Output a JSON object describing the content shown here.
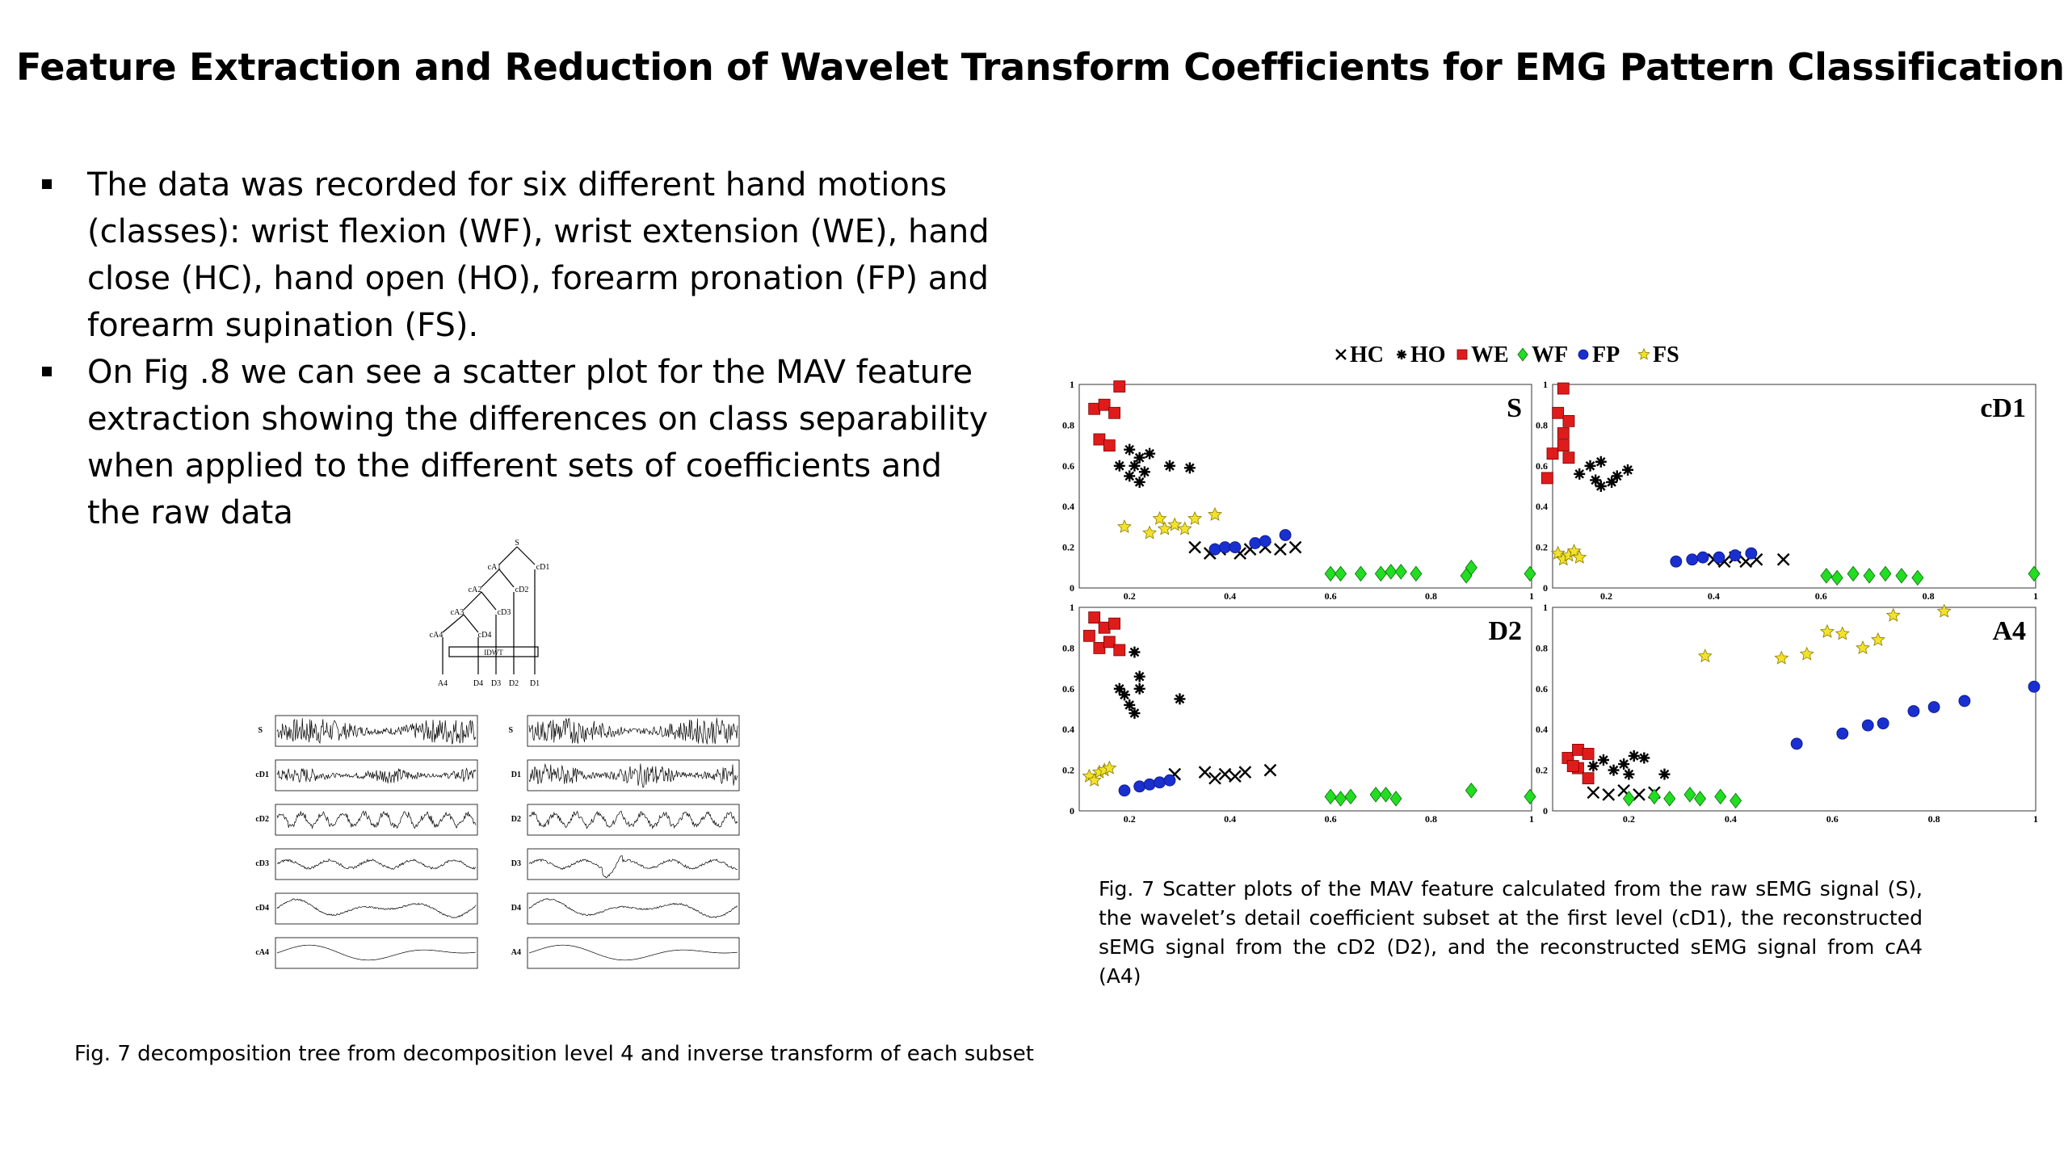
{
  "title": "Feature Extraction and Reduction of Wavelet Transform Coefficients for EMG Pattern Classification",
  "bullets": [
    "The data was recorded for six different hand motions (classes): wrist flexion (WF), wrist extension (WE), hand close (HC), hand open (HO), forearm pronation (FP) and forearm supination (FS).",
    "On Fig .8 we can see a scatter plot for the MAV feature extraction showing the differences on class separability when applied to the different sets of coefficients and the raw data"
  ],
  "caption_left": "Fig. 7 decomposition tree from decomposition level 4 and inverse transform of each subset",
  "caption_right": "Fig. 7 Scatter plots of the MAV feature calculated from the raw sEMG signal (S), the wavelet’s detail coefficient subset at the first level (cD1), the reconstructed sEMG signal from the cD2 (D2), and the reconstructed sEMG signal from cA4 (A4)",
  "tree": {
    "nodes": [
      "S",
      "cA1",
      "cD1",
      "cA2",
      "cD2",
      "cA3",
      "cD3",
      "cA4",
      "cD4"
    ],
    "box_label": "IDWT",
    "outputs": [
      "A4",
      "D4",
      "D3",
      "D2",
      "D1"
    ]
  },
  "signals": {
    "left_labels": [
      "S",
      "cD1",
      "cD2",
      "cD3",
      "cD4",
      "cA4"
    ],
    "right_labels": [
      "S",
      "D1",
      "D2",
      "D3",
      "D4",
      "A4"
    ]
  },
  "chart_data": {
    "type": "scatter",
    "legend": [
      {
        "name": "HC",
        "marker": "x",
        "color": "#000000"
      },
      {
        "name": "HO",
        "marker": "asterisk",
        "color": "#000000"
      },
      {
        "name": "WE",
        "marker": "square",
        "color": "#e01b1b"
      },
      {
        "name": "WF",
        "marker": "diamond",
        "color": "#22dd22"
      },
      {
        "name": "FP",
        "marker": "circle",
        "color": "#1a2fd0"
      },
      {
        "name": "FS",
        "marker": "star",
        "color": "#f2e22a"
      }
    ],
    "legend_position": "top",
    "panels": [
      {
        "label": "S",
        "xlim": [
          0.1,
          1
        ],
        "ylim": [
          0,
          1
        ],
        "xticks": [
          "0.2",
          "0.4",
          "0.6",
          "0.8",
          "1"
        ],
        "yticks": [
          "0",
          "0.2",
          "0.4",
          "0.6",
          "0.8",
          "1"
        ],
        "series": {
          "HC": [
            [
              0.33,
              0.2
            ],
            [
              0.36,
              0.17
            ],
            [
              0.38,
              0.19
            ],
            [
              0.42,
              0.17
            ],
            [
              0.44,
              0.19
            ],
            [
              0.47,
              0.2
            ],
            [
              0.5,
              0.19
            ],
            [
              0.53,
              0.2
            ]
          ],
          "HO": [
            [
              0.18,
              0.6
            ],
            [
              0.2,
              0.55
            ],
            [
              0.21,
              0.6
            ],
            [
              0.22,
              0.64
            ],
            [
              0.23,
              0.57
            ],
            [
              0.24,
              0.66
            ],
            [
              0.22,
              0.52
            ],
            [
              0.28,
              0.6
            ],
            [
              0.32,
              0.59
            ],
            [
              0.2,
              0.68
            ]
          ],
          "WE": [
            [
              0.13,
              0.88
            ],
            [
              0.15,
              0.9
            ],
            [
              0.17,
              0.86
            ],
            [
              0.14,
              0.73
            ],
            [
              0.16,
              0.7
            ],
            [
              0.18,
              0.99
            ]
          ],
          "WF": [
            [
              0.6,
              0.07
            ],
            [
              0.62,
              0.07
            ],
            [
              0.66,
              0.07
            ],
            [
              0.7,
              0.07
            ],
            [
              0.72,
              0.08
            ],
            [
              0.74,
              0.08
            ],
            [
              0.77,
              0.07
            ],
            [
              0.87,
              0.06
            ],
            [
              0.88,
              0.1
            ],
            [
              1.0,
              0.07
            ]
          ],
          "FP": [
            [
              0.37,
              0.19
            ],
            [
              0.39,
              0.2
            ],
            [
              0.41,
              0.2
            ],
            [
              0.45,
              0.22
            ],
            [
              0.47,
              0.23
            ],
            [
              0.51,
              0.26
            ]
          ],
          "FS": [
            [
              0.19,
              0.3
            ],
            [
              0.24,
              0.27
            ],
            [
              0.26,
              0.34
            ],
            [
              0.27,
              0.29
            ],
            [
              0.29,
              0.31
            ],
            [
              0.31,
              0.29
            ],
            [
              0.33,
              0.34
            ],
            [
              0.37,
              0.36
            ]
          ]
        }
      },
      {
        "label": "cD1",
        "xlim": [
          0.1,
          1
        ],
        "ylim": [
          0,
          1
        ],
        "xticks": [
          "0.2",
          "0.4",
          "0.6",
          "0.8",
          "1"
        ],
        "yticks": [
          "0",
          "0.2",
          "0.4",
          "0.6",
          "0.8",
          "1"
        ],
        "series": {
          "HC": [
            [
              0.4,
              0.14
            ],
            [
              0.42,
              0.13
            ],
            [
              0.44,
              0.15
            ],
            [
              0.46,
              0.13
            ],
            [
              0.48,
              0.14
            ],
            [
              0.53,
              0.14
            ]
          ],
          "HO": [
            [
              0.15,
              0.56
            ],
            [
              0.17,
              0.6
            ],
            [
              0.18,
              0.53
            ],
            [
              0.19,
              0.5
            ],
            [
              0.21,
              0.52
            ],
            [
              0.22,
              0.55
            ],
            [
              0.24,
              0.58
            ],
            [
              0.19,
              0.62
            ]
          ],
          "WE": [
            [
              0.12,
              0.98
            ],
            [
              0.11,
              0.86
            ],
            [
              0.13,
              0.82
            ],
            [
              0.1,
              0.66
            ],
            [
              0.12,
              0.7
            ],
            [
              0.13,
              0.64
            ],
            [
              0.09,
              0.54
            ],
            [
              0.12,
              0.76
            ]
          ],
          "WF": [
            [
              0.61,
              0.06
            ],
            [
              0.63,
              0.05
            ],
            [
              0.66,
              0.07
            ],
            [
              0.69,
              0.06
            ],
            [
              0.72,
              0.07
            ],
            [
              0.75,
              0.06
            ],
            [
              0.78,
              0.05
            ],
            [
              1.0,
              0.07
            ]
          ],
          "FP": [
            [
              0.33,
              0.13
            ],
            [
              0.36,
              0.14
            ],
            [
              0.38,
              0.15
            ],
            [
              0.41,
              0.15
            ],
            [
              0.44,
              0.16
            ],
            [
              0.47,
              0.17
            ]
          ],
          "FS": [
            [
              0.11,
              0.17
            ],
            [
              0.12,
              0.14
            ],
            [
              0.13,
              0.16
            ],
            [
              0.14,
              0.18
            ],
            [
              0.15,
              0.15
            ]
          ]
        }
      },
      {
        "label": "D2",
        "xlim": [
          0.1,
          1
        ],
        "ylim": [
          0,
          1
        ],
        "xticks": [
          "0.2",
          "0.4",
          "0.6",
          "0.8",
          "1"
        ],
        "yticks": [
          "0",
          "0.2",
          "0.4",
          "0.6",
          "0.8",
          "1"
        ],
        "series": {
          "HC": [
            [
              0.29,
              0.18
            ],
            [
              0.35,
              0.19
            ],
            [
              0.37,
              0.16
            ],
            [
              0.39,
              0.18
            ],
            [
              0.41,
              0.17
            ],
            [
              0.43,
              0.19
            ],
            [
              0.48,
              0.2
            ]
          ],
          "HO": [
            [
              0.18,
              0.6
            ],
            [
              0.19,
              0.57
            ],
            [
              0.2,
              0.52
            ],
            [
              0.21,
              0.48
            ],
            [
              0.22,
              0.6
            ],
            [
              0.21,
              0.78
            ],
            [
              0.22,
              0.66
            ],
            [
              0.3,
              0.55
            ]
          ],
          "WE": [
            [
              0.13,
              0.95
            ],
            [
              0.15,
              0.9
            ],
            [
              0.17,
              0.92
            ],
            [
              0.14,
              0.8
            ],
            [
              0.16,
              0.83
            ],
            [
              0.18,
              0.79
            ],
            [
              0.12,
              0.86
            ]
          ],
          "WF": [
            [
              0.6,
              0.07
            ],
            [
              0.62,
              0.06
            ],
            [
              0.64,
              0.07
            ],
            [
              0.69,
              0.08
            ],
            [
              0.71,
              0.08
            ],
            [
              0.73,
              0.06
            ],
            [
              0.88,
              0.1
            ],
            [
              1.0,
              0.07
            ]
          ],
          "FP": [
            [
              0.19,
              0.1
            ],
            [
              0.22,
              0.12
            ],
            [
              0.24,
              0.13
            ],
            [
              0.26,
              0.14
            ],
            [
              0.28,
              0.15
            ]
          ],
          "FS": [
            [
              0.12,
              0.17
            ],
            [
              0.13,
              0.15
            ],
            [
              0.14,
              0.19
            ],
            [
              0.15,
              0.2
            ],
            [
              0.16,
              0.21
            ]
          ]
        }
      },
      {
        "label": "A4",
        "xlim": [
          0.05,
          1
        ],
        "ylim": [
          0,
          1
        ],
        "xticks": [
          "0.2",
          "0.4",
          "0.6",
          "0.8",
          "1"
        ],
        "yticks": [
          "0",
          "0.2",
          "0.4",
          "0.6",
          "0.8",
          "1"
        ],
        "series": {
          "HC": [
            [
              0.13,
              0.09
            ],
            [
              0.16,
              0.08
            ],
            [
              0.19,
              0.1
            ],
            [
              0.22,
              0.08
            ],
            [
              0.25,
              0.09
            ]
          ],
          "HO": [
            [
              0.13,
              0.22
            ],
            [
              0.15,
              0.25
            ],
            [
              0.17,
              0.2
            ],
            [
              0.19,
              0.23
            ],
            [
              0.21,
              0.27
            ],
            [
              0.23,
              0.26
            ],
            [
              0.27,
              0.18
            ],
            [
              0.2,
              0.18
            ]
          ],
          "WE": [
            [
              0.08,
              0.26
            ],
            [
              0.1,
              0.3
            ],
            [
              0.12,
              0.28
            ],
            [
              0.1,
              0.21
            ],
            [
              0.12,
              0.16
            ],
            [
              0.09,
              0.22
            ]
          ],
          "WF": [
            [
              0.2,
              0.06
            ],
            [
              0.25,
              0.07
            ],
            [
              0.28,
              0.06
            ],
            [
              0.32,
              0.08
            ],
            [
              0.34,
              0.06
            ],
            [
              0.38,
              0.07
            ],
            [
              0.41,
              0.05
            ]
          ],
          "FP": [
            [
              0.53,
              0.33
            ],
            [
              0.62,
              0.38
            ],
            [
              0.67,
              0.42
            ],
            [
              0.7,
              0.43
            ],
            [
              0.76,
              0.49
            ],
            [
              0.8,
              0.51
            ],
            [
              0.86,
              0.54
            ],
            [
              1.0,
              0.61
            ]
          ],
          "FS": [
            [
              0.35,
              0.76
            ],
            [
              0.5,
              0.75
            ],
            [
              0.55,
              0.77
            ],
            [
              0.59,
              0.88
            ],
            [
              0.62,
              0.87
            ],
            [
              0.66,
              0.8
            ],
            [
              0.69,
              0.84
            ],
            [
              0.72,
              0.96
            ],
            [
              0.82,
              0.98
            ]
          ]
        }
      }
    ]
  }
}
